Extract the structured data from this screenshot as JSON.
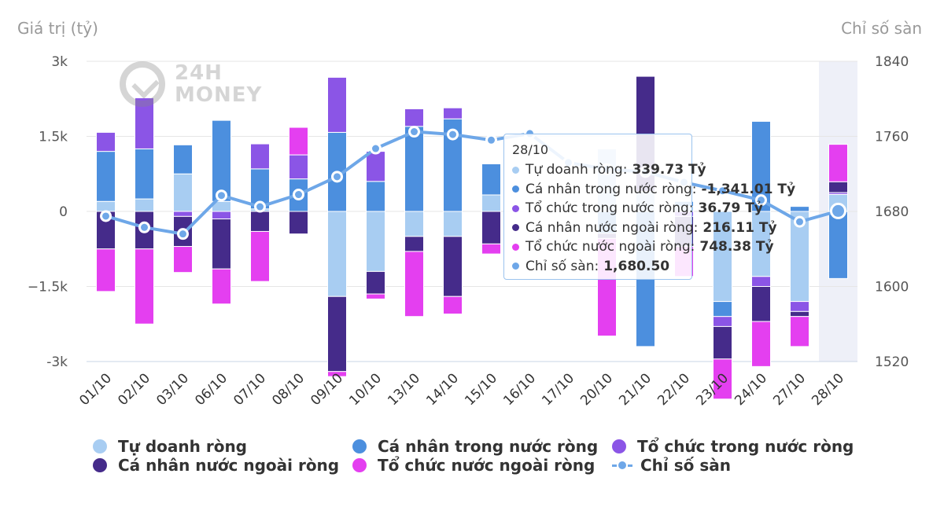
{
  "chart_data": {
    "type": "bar",
    "stacked": true,
    "categories": [
      "01/10",
      "02/10",
      "03/10",
      "06/10",
      "07/10",
      "08/10",
      "09/10",
      "10/10",
      "13/10",
      "14/10",
      "15/10",
      "16/10",
      "17/10",
      "20/10",
      "21/10",
      "22/10",
      "23/10",
      "24/10",
      "27/10",
      "28/10"
    ],
    "ylabel": "Giá trị (tỷ)",
    "y2label": "Chỉ số sàn",
    "ylim": [
      -3000,
      3000
    ],
    "y2lim": [
      1520,
      1840
    ],
    "y_ticks": [
      "3k",
      "1.5k",
      "0",
      "−1.5k",
      "-3k"
    ],
    "y2_ticks": [
      "1840",
      "1760",
      "1680",
      "1600",
      "1520"
    ],
    "series": [
      {
        "name": "Tự doanh ròng",
        "color": "#a8cdf2",
        "values": [
          200,
          250,
          750,
          200,
          50,
          0,
          -1700,
          -1200,
          -500,
          -500,
          330,
          0,
          0,
          1250,
          400,
          100,
          -1800,
          -1300,
          -1800,
          340
        ]
      },
      {
        "name": "Cá nhân trong nước ròng",
        "color": "#4c8fde",
        "values": [
          1000,
          1000,
          580,
          1620,
          800,
          650,
          1580,
          600,
          1700,
          1850,
          620,
          0,
          0,
          -440,
          -2700,
          100,
          -300,
          1800,
          100,
          -1341
        ]
      },
      {
        "name": "Tổ chức trong nước ròng",
        "color": "#8b55e6",
        "values": [
          380,
          1020,
          -100,
          -150,
          500,
          480,
          1100,
          600,
          350,
          220,
          0,
          0,
          0,
          0,
          0,
          -100,
          -200,
          -200,
          -200,
          37
        ]
      },
      {
        "name": "Cá nhân nước ngoài ròng",
        "color": "#452b8a",
        "values": [
          -750,
          -750,
          -600,
          -1000,
          -400,
          -450,
          -1500,
          -450,
          -300,
          -1200,
          -650,
          0,
          0,
          -100,
          2300,
          -600,
          -650,
          -700,
          -100,
          216
        ]
      },
      {
        "name": "Tổ chức nước ngoài ròng",
        "color": "#e43ff0",
        "values": [
          -850,
          -1500,
          -520,
          -700,
          -1000,
          550,
          -100,
          -100,
          -1300,
          -350,
          -200,
          0,
          0,
          -1950,
          0,
          -600,
          -800,
          -900,
          -600,
          748
        ]
      }
    ],
    "line_series": {
      "name": "Chỉ số sàn",
      "color": "#6ea7e8",
      "values": [
        1675,
        1663,
        1656,
        1697,
        1685,
        1698,
        1717,
        1747,
        1765,
        1762,
        1756,
        1763,
        1732,
        1725,
        1722,
        1711,
        1702,
        1692,
        1669,
        1680.5
      ]
    },
    "highlight_index": 19,
    "legend_position": "bottom"
  },
  "legend": [
    {
      "label": "Tự doanh ròng",
      "color": "#a8cdf2"
    },
    {
      "label": "Cá nhân trong nước ròng",
      "color": "#4c8fde"
    },
    {
      "label": "Tổ chức trong nước ròng",
      "color": "#8b55e6"
    },
    {
      "label": "Cá nhân nước ngoài ròng",
      "color": "#452b8a"
    },
    {
      "label": "Tổ chức nước ngoài ròng",
      "color": "#e43ff0"
    },
    {
      "label": "Chỉ số sàn",
      "color": "#6ea7e8"
    }
  ],
  "tooltip": {
    "date": "28/10",
    "rows": [
      {
        "label": "Tự doanh ròng:",
        "value": "339.73 Tỷ",
        "color": "#a8cdf2"
      },
      {
        "label": "Cá nhân trong nước ròng:",
        "value": "-1,341.01 Tỷ",
        "color": "#4c8fde"
      },
      {
        "label": "Tổ chức trong nước ròng:",
        "value": "36.79 Tỷ",
        "color": "#8b55e6"
      },
      {
        "label": "Cá nhân nước ngoài ròng:",
        "value": "216.11 Tỷ",
        "color": "#452b8a"
      },
      {
        "label": "Tổ chức nước ngoài ròng:",
        "value": "748.38 Tỷ",
        "color": "#e43ff0"
      },
      {
        "label": "Chỉ số sàn:",
        "value": "1,680.50",
        "color": "#6ea7e8"
      }
    ]
  },
  "watermark": {
    "line1": "24H",
    "line2": "MONEY"
  }
}
